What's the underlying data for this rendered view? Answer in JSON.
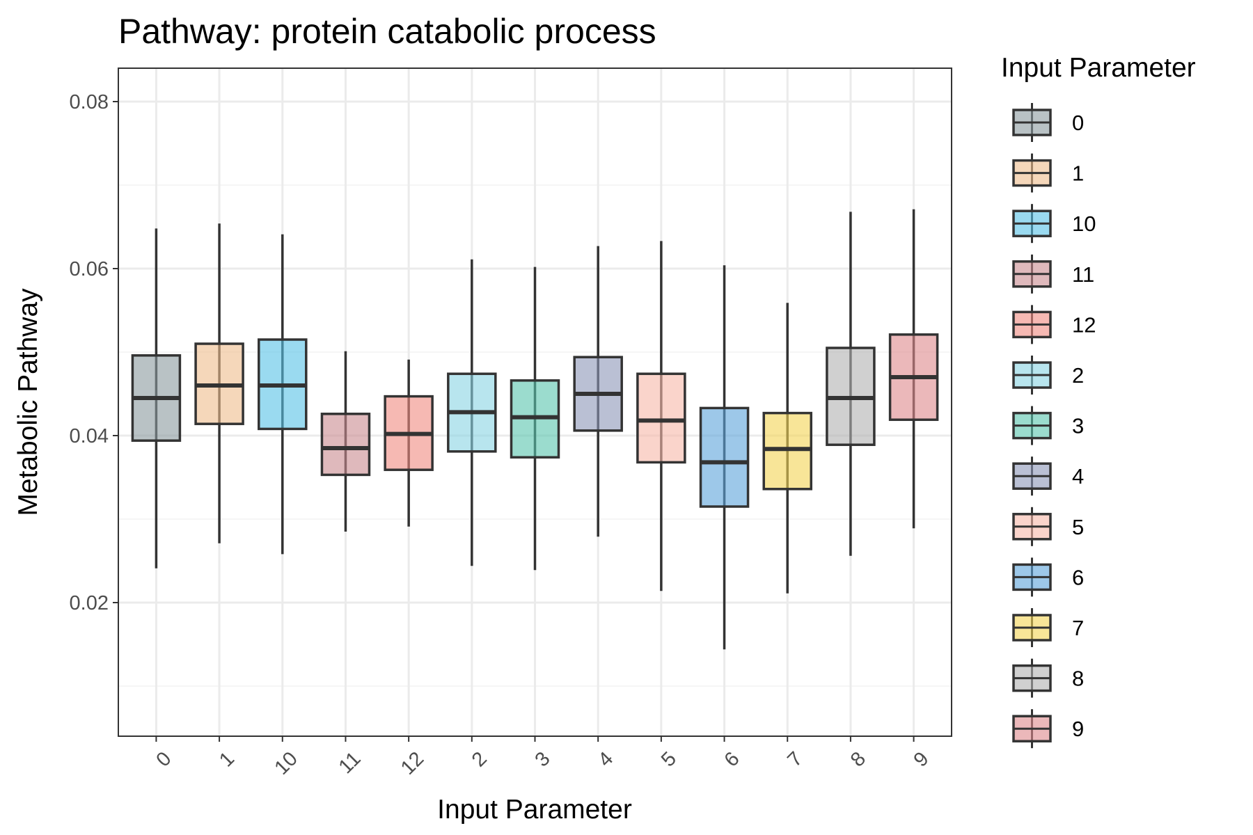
{
  "chart_data": {
    "type": "boxplot",
    "title": "Pathway: protein catabolic process",
    "xlabel": "Input Parameter",
    "ylabel": "Metabolic Pathway",
    "ylim": [
      0.004,
      0.084
    ],
    "y_ticks": [
      0.02,
      0.04,
      0.06,
      0.08
    ],
    "y_tick_labels": [
      "0.02",
      "0.04",
      "0.06",
      "0.08"
    ],
    "grid": true,
    "legend": {
      "title": "Input Parameter",
      "position": "right"
    },
    "categories": [
      "0",
      "1",
      "10",
      "11",
      "12",
      "2",
      "3",
      "4",
      "5",
      "6",
      "7",
      "8",
      "9"
    ],
    "boxes": [
      {
        "name": "0",
        "min": 0.0241,
        "q1": 0.0394,
        "median": 0.0445,
        "q3": 0.0496,
        "max": 0.0648,
        "color": "#8a9a9e"
      },
      {
        "name": "1",
        "min": 0.0271,
        "q1": 0.0414,
        "median": 0.046,
        "q3": 0.051,
        "max": 0.0654,
        "color": "#efbd8c"
      },
      {
        "name": "10",
        "min": 0.0258,
        "q1": 0.0408,
        "median": 0.046,
        "q3": 0.0515,
        "max": 0.0641,
        "color": "#56c1e6"
      },
      {
        "name": "11",
        "min": 0.0285,
        "q1": 0.0353,
        "median": 0.0385,
        "q3": 0.0426,
        "max": 0.0501,
        "color": "#c98a8f"
      },
      {
        "name": "12",
        "min": 0.0291,
        "q1": 0.0359,
        "median": 0.0402,
        "q3": 0.0447,
        "max": 0.0491,
        "color": "#f08a80"
      },
      {
        "name": "2",
        "min": 0.0244,
        "q1": 0.0381,
        "median": 0.0428,
        "q3": 0.0474,
        "max": 0.0611,
        "color": "#89d3e2"
      },
      {
        "name": "3",
        "min": 0.0239,
        "q1": 0.0374,
        "median": 0.0422,
        "q3": 0.0466,
        "max": 0.0602,
        "color": "#58c4ae"
      },
      {
        "name": "4",
        "min": 0.0279,
        "q1": 0.0406,
        "median": 0.045,
        "q3": 0.0494,
        "max": 0.0627,
        "color": "#8c96b8"
      },
      {
        "name": "5",
        "min": 0.0214,
        "q1": 0.0368,
        "median": 0.0418,
        "q3": 0.0474,
        "max": 0.0633,
        "color": "#f6b8a8"
      },
      {
        "name": "6",
        "min": 0.0144,
        "q1": 0.0315,
        "median": 0.0368,
        "q3": 0.0433,
        "max": 0.0604,
        "color": "#5ba4db"
      },
      {
        "name": "7",
        "min": 0.0211,
        "q1": 0.0336,
        "median": 0.0384,
        "q3": 0.0427,
        "max": 0.0559,
        "color": "#f4d454"
      },
      {
        "name": "8",
        "min": 0.0256,
        "q1": 0.0389,
        "median": 0.0445,
        "q3": 0.0505,
        "max": 0.0668,
        "color": "#b0b0b0"
      },
      {
        "name": "9",
        "min": 0.0289,
        "q1": 0.0419,
        "median": 0.047,
        "q3": 0.0521,
        "max": 0.0671,
        "color": "#de898c"
      }
    ]
  }
}
